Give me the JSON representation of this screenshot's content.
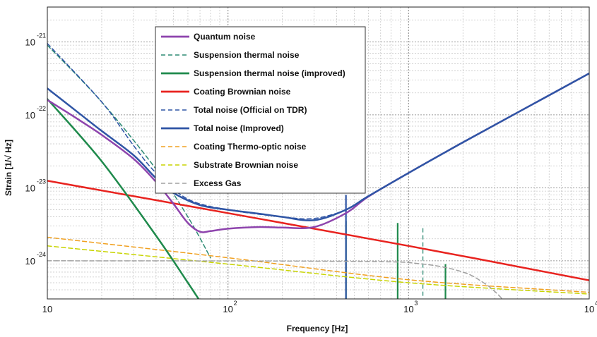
{
  "chart_data": {
    "type": "line",
    "scale": {
      "x": "log",
      "y": "log"
    },
    "xlim": [
      10,
      10000
    ],
    "ylim": [
      3e-25,
      3e-21
    ],
    "xlabel": "Frequency [Hz]",
    "ylabel": "Strain [1/√ Hz]",
    "grid": true,
    "legend_position": "top-left",
    "x_ticks": [
      {
        "base": "10",
        "exp": ""
      },
      {
        "base": "10",
        "exp": "2"
      },
      {
        "base": "10",
        "exp": "3"
      },
      {
        "base": "10",
        "exp": "4"
      }
    ],
    "y_ticks": [
      {
        "base": "10",
        "exp": "-24"
      },
      {
        "base": "10",
        "exp": "-23"
      },
      {
        "base": "10",
        "exp": "-22"
      },
      {
        "base": "10",
        "exp": "-21"
      }
    ],
    "series": [
      {
        "name": "Quantum noise",
        "color": "#8e44ad",
        "dash": "solid",
        "width": 2.5,
        "x": [
          10,
          15,
          20,
          30,
          40,
          50,
          60,
          70,
          80,
          100,
          150,
          200,
          300,
          450,
          600,
          1000,
          2000,
          5000,
          10000
        ],
        "y": [
          1.6e-22,
          8.5e-23,
          5.3e-23,
          2.5e-23,
          1.2e-23,
          6e-24,
          3.3e-24,
          2.5e-24,
          2.55e-24,
          2.75e-24,
          2.9e-24,
          2.85e-24,
          2.9e-24,
          4.5e-24,
          7.6e-24,
          1.6e-23,
          4.2e-23,
          1.45e-22,
          3.7e-22
        ]
      },
      {
        "name": "Suspension thermal noise",
        "color": "#2e8b74",
        "dash": "6,4",
        "width": 1.5,
        "x": [
          10,
          20,
          40,
          60,
          80
        ],
        "y": [
          9e-22,
          1.5e-22,
          1.8e-23,
          4e-24,
          1.1e-24
        ]
      },
      {
        "name": "Suspension thermal noise (improved)",
        "color": "#1f8a4c",
        "dash": "solid",
        "width": 2.5,
        "x": [
          10,
          20,
          40,
          60,
          70
        ],
        "y": [
          1.65e-22,
          2.3e-23,
          2.2e-24,
          5e-25,
          2.8e-25
        ]
      },
      {
        "name": "Coating Brownian noise",
        "color": "#e8231f",
        "dash": "solid",
        "width": 2.5,
        "x": [
          10,
          100,
          1000,
          10000
        ],
        "y": [
          1.25e-23,
          4.5e-24,
          1.6e-24,
          5.4e-25
        ]
      },
      {
        "name": "Total noise (Official on TDR)",
        "color": "#2f55a5",
        "dash": "6,4",
        "width": 1.5,
        "x": [
          10,
          20,
          30,
          40,
          60,
          100,
          200,
          300,
          450,
          600,
          1000,
          2000,
          5000,
          10000
        ],
        "y": [
          9.5e-22,
          1.5e-22,
          3.8e-23,
          1.6e-23,
          7e-24,
          5e-24,
          4e-24,
          3.8e-24,
          5e-24,
          7.7e-24,
          1.6e-23,
          4.2e-23,
          1.45e-22,
          3.7e-22
        ]
      },
      {
        "name": "Total noise (Improved)",
        "color": "#2f55a5",
        "dash": "solid",
        "width": 2.5,
        "x": [
          10,
          15,
          20,
          30,
          40,
          50,
          70,
          100,
          150,
          200,
          300,
          450,
          600,
          1000,
          2000,
          5000,
          10000
        ],
        "y": [
          2.3e-22,
          1.05e-22,
          6e-23,
          2.8e-23,
          1.35e-23,
          8.5e-24,
          5.8e-24,
          5e-24,
          4.4e-24,
          4e-24,
          3.6e-24,
          5e-24,
          7.7e-24,
          1.6e-23,
          4.2e-23,
          1.45e-22,
          3.7e-22
        ]
      },
      {
        "name": "Coating Thermo-optic noise",
        "color": "#f0a020",
        "dash": "6,4",
        "width": 1.5,
        "x": [
          10,
          100,
          1000,
          10000
        ],
        "y": [
          2.1e-24,
          1.1e-24,
          5.5e-25,
          3.7e-25
        ]
      },
      {
        "name": "Substrate Brownian noise",
        "color": "#c8d400",
        "dash": "6,4",
        "width": 1.5,
        "x": [
          10,
          100,
          1000,
          10000
        ],
        "y": [
          1.6e-24,
          9e-25,
          5e-25,
          3.5e-25
        ]
      },
      {
        "name": "Excess Gas",
        "color": "#a0a0a0",
        "dash": "6,4",
        "width": 1.5,
        "x": [
          10,
          500,
          1200,
          2000,
          2600,
          3000,
          3300
        ],
        "y": [
          1e-24,
          9.8e-25,
          9e-25,
          7e-25,
          5e-25,
          3.8e-25,
          3e-25
        ]
      }
    ],
    "spikes": [
      {
        "color": "#1f8a4c",
        "dash": "solid",
        "x": 450,
        "y_top": 3.5e-24
      },
      {
        "color": "#2f55a5",
        "dash": "solid",
        "x": 450,
        "y_top": 8e-24
      },
      {
        "color": "#1f8a4c",
        "dash": "solid",
        "x": 870,
        "y_top": 3.3e-24
      },
      {
        "color": "#2e8b74",
        "dash": "6,4",
        "x": 1200,
        "y_top": 2.8e-24
      },
      {
        "color": "#1f8a4c",
        "dash": "solid",
        "x": 1600,
        "y_top": 9e-25
      }
    ]
  }
}
